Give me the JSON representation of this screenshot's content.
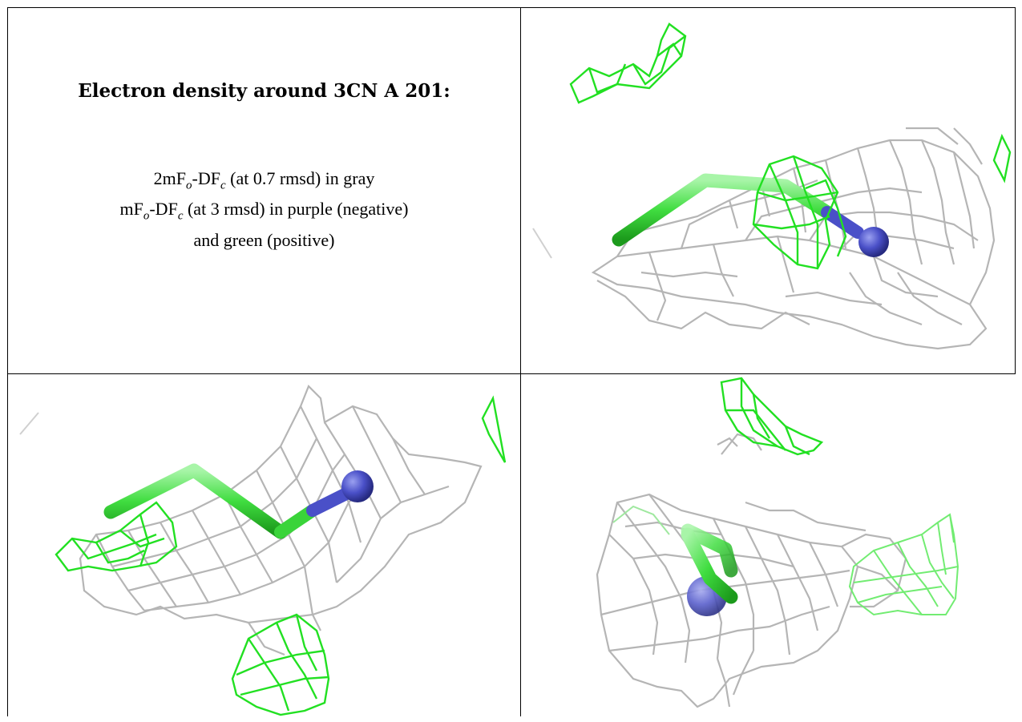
{
  "caption": {
    "title": "Electron density around 3CN A 201:",
    "line1": {
      "pre": "2mF",
      "sub1": "o",
      "mid": "-DF",
      "sub2": "c",
      "post": " (at 0.7 rmsd) in gray"
    },
    "line2": {
      "pre": "mF",
      "sub1": "o",
      "mid": "-DF",
      "sub2": "c",
      "post": " (at 3 rmsd) in purple (negative)"
    },
    "line3": "and green (positive)"
  },
  "colors": {
    "map_2fofc": "#b5b5b5",
    "map_fofc_positive": "#22e022",
    "ligand_carbon": "#4ee04e",
    "ligand_nitrogen": "#4a50c8"
  },
  "views": [
    {
      "name": "view-top-right"
    },
    {
      "name": "view-bottom-left"
    },
    {
      "name": "view-bottom-right"
    }
  ]
}
